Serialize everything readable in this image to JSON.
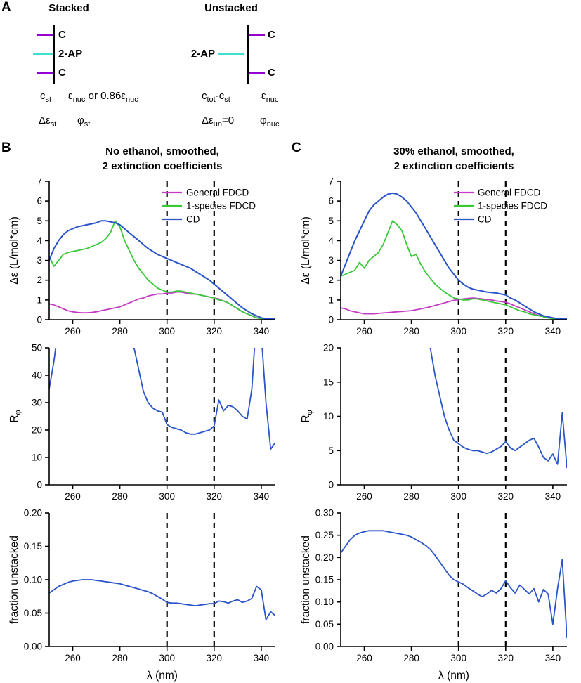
{
  "panels": {
    "a": {
      "label": "A",
      "stacked": {
        "title": "Stacked",
        "top_base": "C",
        "mid_base": "2-AP",
        "bottom_base": "C",
        "formulas": {
          "concentration": [
            [
              "n",
              "c"
            ],
            [
              "s",
              "st"
            ]
          ],
          "extinction": [
            [
              "n",
              "ε"
            ],
            [
              "s",
              "nuc"
            ],
            [
              "n",
              " or 0.86ε"
            ],
            [
              "s",
              "nuc"
            ]
          ],
          "delta_eps": [
            [
              "n",
              "Δε"
            ],
            [
              "s",
              "st"
            ]
          ],
          "phi": [
            [
              "n",
              "φ"
            ],
            [
              "s",
              "st"
            ]
          ]
        }
      },
      "unstacked": {
        "title": "Unstacked",
        "top_base": "C",
        "mid_base": "2-AP",
        "bottom_base": "C",
        "formulas": {
          "concentration": [
            [
              "n",
              "c"
            ],
            [
              "s",
              "tot"
            ],
            [
              "n",
              "-c"
            ],
            [
              "s",
              "st"
            ]
          ],
          "extinction": [
            [
              "n",
              "ε"
            ],
            [
              "s",
              "nuc"
            ]
          ],
          "delta_eps": [
            [
              "n",
              "Δε"
            ],
            [
              "s",
              "un"
            ],
            [
              "n",
              "=0"
            ]
          ],
          "phi": [
            [
              "n",
              "φ"
            ],
            [
              "s",
              "nuc"
            ]
          ]
        }
      }
    },
    "b": {
      "label": "B",
      "title_line1": "No ethanol, smoothed,",
      "title_line2": "2 extinction coefficients"
    },
    "c": {
      "label": "C",
      "title_line1": "30% ethanol, smoothed,",
      "title_line2": "2 extinction coefficients"
    }
  },
  "colors": {
    "general_fdcd": "#c43bc4",
    "one_species_fdcd": "#38c938",
    "cd": "#2953c9",
    "purple_base": "#9400d3",
    "teal_base": "#40e0d0",
    "axis": "#000000"
  },
  "chart_data": {
    "type": "line",
    "x_label": "λ (nm)",
    "xlim": [
      250,
      346
    ],
    "xticks": [
      [
        260,
        "260"
      ],
      [
        280,
        "280"
      ],
      [
        300,
        "300"
      ],
      [
        320,
        "320"
      ],
      [
        340,
        "340"
      ]
    ],
    "vlines": [
      300,
      320
    ],
    "x_nm": [
      250,
      252,
      254,
      256,
      258,
      260,
      262,
      264,
      266,
      268,
      270,
      272,
      274,
      276,
      278,
      280,
      282,
      284,
      286,
      288,
      290,
      292,
      294,
      296,
      298,
      300,
      302,
      304,
      306,
      308,
      310,
      312,
      314,
      316,
      318,
      320,
      322,
      324,
      326,
      328,
      330,
      332,
      334,
      336,
      338,
      340,
      342,
      344,
      346
    ],
    "charts": [
      {
        "id": "b-top",
        "panel": "B",
        "ylabel_parts": [
          [
            "n",
            "Δε (L/mol*cm)"
          ]
        ],
        "ylim": [
          0,
          7
        ],
        "yticks": [
          [
            0,
            "0"
          ],
          [
            1,
            "1"
          ],
          [
            2,
            "2"
          ],
          [
            3,
            "3"
          ],
          [
            4,
            "4"
          ],
          [
            5,
            "5"
          ],
          [
            6,
            "6"
          ],
          [
            7,
            "7"
          ]
        ],
        "show_legend": true,
        "has_xlabel": false,
        "series": [
          {
            "name": "General FDCD",
            "color_key": "general_fdcd",
            "width": 1.8,
            "y": [
              0.8,
              0.75,
              0.65,
              0.55,
              0.45,
              0.4,
              0.37,
              0.35,
              0.35,
              0.37,
              0.4,
              0.45,
              0.5,
              0.55,
              0.6,
              0.65,
              0.75,
              0.85,
              0.95,
              1.05,
              1.1,
              1.2,
              1.25,
              1.3,
              1.3,
              1.35,
              1.35,
              1.4,
              1.4,
              1.35,
              1.3,
              1.3,
              1.25,
              1.2,
              1.15,
              1.1,
              1.05,
              0.95,
              0.85,
              0.7,
              0.55,
              0.4,
              0.3,
              0.2,
              0.1,
              0.05,
              0.05,
              0.0,
              0.05
            ]
          },
          {
            "name": "1-species FDCD",
            "color_key": "one_species_fdcd",
            "width": 1.8,
            "y": [
              3.2,
              2.7,
              3.0,
              3.3,
              3.4,
              3.45,
              3.5,
              3.55,
              3.6,
              3.7,
              3.8,
              3.9,
              4.1,
              4.4,
              5.0,
              4.7,
              4.0,
              3.5,
              3.0,
              2.6,
              2.3,
              2.0,
              1.8,
              1.6,
              1.5,
              1.4,
              1.4,
              1.45,
              1.45,
              1.4,
              1.35,
              1.3,
              1.25,
              1.2,
              1.15,
              1.1,
              1.0,
              0.95,
              0.85,
              0.7,
              0.55,
              0.4,
              0.3,
              0.2,
              0.1,
              0.05,
              0.05,
              0.0,
              0.05
            ]
          },
          {
            "name": "CD",
            "color_key": "cd",
            "width": 2.0,
            "y": [
              3.0,
              3.6,
              4.0,
              4.3,
              4.5,
              4.6,
              4.7,
              4.75,
              4.8,
              4.85,
              4.9,
              5.0,
              5.0,
              4.95,
              4.9,
              4.8,
              4.6,
              4.4,
              4.2,
              4.0,
              3.8,
              3.6,
              3.45,
              3.3,
              3.2,
              3.1,
              3.0,
              2.9,
              2.8,
              2.7,
              2.6,
              2.45,
              2.3,
              2.15,
              2.0,
              1.8,
              1.6,
              1.4,
              1.2,
              1.0,
              0.8,
              0.6,
              0.45,
              0.3,
              0.2,
              0.1,
              0.05,
              0.05,
              0.05
            ]
          }
        ]
      },
      {
        "id": "b-mid",
        "panel": "B",
        "ylabel_parts": [
          [
            "n",
            "R"
          ],
          [
            "s",
            "φ"
          ]
        ],
        "ylim": [
          0,
          50
        ],
        "yticks": [
          [
            0,
            "0"
          ],
          [
            10,
            "10"
          ],
          [
            20,
            "20"
          ],
          [
            30,
            "30"
          ],
          [
            40,
            "40"
          ],
          [
            50,
            "50"
          ]
        ],
        "show_legend": false,
        "has_xlabel": false,
        "series": [
          {
            "name": "R_phi",
            "color_key": "cd",
            "width": 1.8,
            "y": [
              35,
              45,
              58,
              75,
              90,
              100,
              105,
              110,
              110,
              110,
              110,
              108,
              105,
              100,
              92,
              82,
              70,
              58,
              50,
              42,
              34,
              30,
              28,
              27,
              26.5,
              22,
              21,
              20.5,
              20,
              19,
              18.5,
              18.5,
              19,
              19.5,
              20,
              21.5,
              31,
              27,
              29,
              28.5,
              27,
              25,
              24,
              35,
              62,
              55,
              30,
              13,
              15.5
            ]
          }
        ]
      },
      {
        "id": "b-bot",
        "panel": "B",
        "ylabel_parts": [
          [
            "n",
            "fraction unstacked"
          ]
        ],
        "ylim": [
          0,
          0.2
        ],
        "yticks": [
          [
            0,
            "0.00"
          ],
          [
            0.05,
            "0.05"
          ],
          [
            0.1,
            "0.10"
          ],
          [
            0.15,
            "0.15"
          ],
          [
            0.2,
            "0.20"
          ]
        ],
        "show_legend": false,
        "has_xlabel": true,
        "series": [
          {
            "name": "fraction unstacked",
            "color_key": "cd",
            "width": 1.8,
            "y": [
              0.08,
              0.085,
              0.09,
              0.093,
              0.096,
              0.098,
              0.099,
              0.1,
              0.1,
              0.1,
              0.099,
              0.098,
              0.097,
              0.096,
              0.095,
              0.094,
              0.092,
              0.09,
              0.088,
              0.086,
              0.084,
              0.082,
              0.079,
              0.075,
              0.071,
              0.066,
              0.065,
              0.065,
              0.064,
              0.063,
              0.062,
              0.061,
              0.062,
              0.063,
              0.064,
              0.064,
              0.068,
              0.067,
              0.065,
              0.068,
              0.07,
              0.066,
              0.068,
              0.072,
              0.09,
              0.085,
              0.04,
              0.052,
              0.046
            ]
          }
        ]
      },
      {
        "id": "c-top",
        "panel": "C",
        "ylabel_parts": [
          [
            "n",
            "Δε (L/mol*cm)"
          ]
        ],
        "ylim": [
          0,
          7
        ],
        "yticks": [
          [
            0,
            "0"
          ],
          [
            1,
            "1"
          ],
          [
            2,
            "2"
          ],
          [
            3,
            "3"
          ],
          [
            4,
            "4"
          ],
          [
            5,
            "5"
          ],
          [
            6,
            "6"
          ],
          [
            7,
            "7"
          ]
        ],
        "show_legend": true,
        "has_xlabel": false,
        "series": [
          {
            "name": "General FDCD",
            "color_key": "general_fdcd",
            "width": 1.8,
            "y": [
              0.6,
              0.55,
              0.45,
              0.4,
              0.35,
              0.3,
              0.3,
              0.3,
              0.32,
              0.34,
              0.36,
              0.38,
              0.4,
              0.42,
              0.44,
              0.46,
              0.5,
              0.55,
              0.6,
              0.65,
              0.72,
              0.78,
              0.85,
              0.92,
              0.98,
              1.02,
              1.05,
              1.08,
              1.1,
              1.08,
              1.05,
              1.02,
              1.0,
              0.95,
              0.92,
              0.88,
              0.8,
              0.7,
              0.6,
              0.5,
              0.4,
              0.3,
              0.22,
              0.15,
              0.1,
              0.08,
              0.05,
              0.05,
              0.05
            ]
          },
          {
            "name": "1-species FDCD",
            "color_key": "one_species_fdcd",
            "width": 1.8,
            "y": [
              2.2,
              2.3,
              2.4,
              2.5,
              2.9,
              2.6,
              3.0,
              3.2,
              3.4,
              3.8,
              4.4,
              5.0,
              4.8,
              4.5,
              3.8,
              3.2,
              3.3,
              2.8,
              2.4,
              2.1,
              1.8,
              1.6,
              1.4,
              1.25,
              1.1,
              1.05,
              1.0,
              1.0,
              1.05,
              1.05,
              1.0,
              0.95,
              0.9,
              0.85,
              0.8,
              0.75,
              0.65,
              0.55,
              0.45,
              0.4,
              0.3,
              0.25,
              0.2,
              0.15,
              0.1,
              0.05,
              0.05,
              0.05,
              0.05
            ]
          },
          {
            "name": "CD",
            "color_key": "cd",
            "width": 2.0,
            "y": [
              2.2,
              2.8,
              3.4,
              4.0,
              4.5,
              5.0,
              5.5,
              5.8,
              6.0,
              6.2,
              6.35,
              6.4,
              6.35,
              6.2,
              6.0,
              5.7,
              5.4,
              5.0,
              4.6,
              4.2,
              3.8,
              3.4,
              3.0,
              2.6,
              2.3,
              2.0,
              1.8,
              1.65,
              1.55,
              1.5,
              1.45,
              1.4,
              1.38,
              1.35,
              1.3,
              1.25,
              1.1,
              1.0,
              0.85,
              0.7,
              0.55,
              0.4,
              0.3,
              0.2,
              0.15,
              0.1,
              0.05,
              0.05,
              0.05
            ]
          }
        ]
      },
      {
        "id": "c-mid",
        "panel": "C",
        "ylabel_parts": [
          [
            "n",
            "R"
          ],
          [
            "s",
            "φ"
          ]
        ],
        "ylim": [
          0,
          20
        ],
        "yticks": [
          [
            0,
            "0"
          ],
          [
            5,
            "5"
          ],
          [
            10,
            "10"
          ],
          [
            15,
            "15"
          ],
          [
            20,
            "20"
          ]
        ],
        "show_legend": false,
        "has_xlabel": false,
        "series": [
          {
            "name": "R_phi",
            "color_key": "cd",
            "width": 1.8,
            "y": [
              22,
              28,
              35,
              40,
              45,
              50,
              52,
              54,
              54,
              54,
              52,
              50,
              48,
              45,
              40,
              36,
              32,
              28,
              24,
              20,
              16,
              13,
              10,
              8,
              6.5,
              6.0,
              5.5,
              5.2,
              5.0,
              5.0,
              4.8,
              4.6,
              4.8,
              5.2,
              5.6,
              6.3,
              5.4,
              5.0,
              5.5,
              6.0,
              6.5,
              6.8,
              5.5,
              4.0,
              3.5,
              4.5,
              3.0,
              10.5,
              2.5
            ]
          }
        ]
      },
      {
        "id": "c-bot",
        "panel": "C",
        "ylabel_parts": [
          [
            "n",
            "fraction unstacked"
          ]
        ],
        "ylim": [
          0,
          0.3
        ],
        "yticks": [
          [
            0,
            "0.00"
          ],
          [
            0.05,
            "0.05"
          ],
          [
            0.1,
            "0.10"
          ],
          [
            0.15,
            "0.15"
          ],
          [
            0.2,
            "0.20"
          ],
          [
            0.25,
            "0.25"
          ],
          [
            0.3,
            "0.30"
          ]
        ],
        "show_legend": false,
        "has_xlabel": true,
        "series": [
          {
            "name": "fraction unstacked",
            "color_key": "cd",
            "width": 1.8,
            "y": [
              0.21,
              0.225,
              0.24,
              0.25,
              0.255,
              0.258,
              0.26,
              0.26,
              0.26,
              0.26,
              0.258,
              0.256,
              0.254,
              0.252,
              0.25,
              0.246,
              0.24,
              0.234,
              0.227,
              0.218,
              0.205,
              0.19,
              0.175,
              0.16,
              0.15,
              0.145,
              0.14,
              0.132,
              0.125,
              0.118,
              0.112,
              0.118,
              0.126,
              0.12,
              0.13,
              0.148,
              0.132,
              0.12,
              0.138,
              0.128,
              0.118,
              0.13,
              0.1,
              0.128,
              0.118,
              0.05,
              0.13,
              0.195,
              0.02
            ]
          }
        ]
      }
    ]
  }
}
